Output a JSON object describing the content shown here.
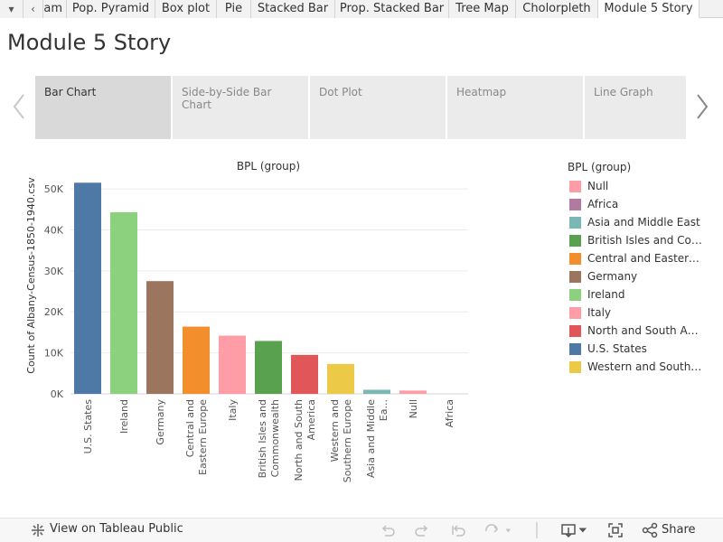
{
  "tabs": [
    {
      "label": "▾",
      "active": false
    },
    {
      "label": "‹",
      "active": false
    },
    {
      "label": "am",
      "active": false
    },
    {
      "label": "Pop. Pyramid",
      "active": false
    },
    {
      "label": "Box plot",
      "active": false
    },
    {
      "label": "Pie",
      "active": false
    },
    {
      "label": "Stacked Bar",
      "active": false
    },
    {
      "label": "Prop. Stacked Bar",
      "active": false
    },
    {
      "label": "Tree Map",
      "active": false
    },
    {
      "label": "Cholorpleth",
      "active": false
    },
    {
      "label": "Module 5 Story",
      "active": true
    }
  ],
  "story": {
    "title": "Module 5 Story",
    "points": [
      "Bar Chart",
      "Side-by-Side Bar Chart",
      "Dot Plot",
      "Heatmap",
      "Line Graph"
    ],
    "active_point": 0
  },
  "icons": {
    "nav_prev": "chevron-left-icon",
    "nav_next": "chevron-right-icon",
    "public": "tableau-public-icon",
    "undo": "undo-icon",
    "redo": "redo-icon",
    "revert": "revert-icon",
    "refresh": "refresh-icon",
    "download": "download-icon",
    "fullscreen": "fullscreen-icon",
    "share": "share-icon"
  },
  "chart_data": {
    "type": "bar",
    "title": "BPL (group)",
    "ylabel": "Count of Albany-Census-1850-1940.csv",
    "xlabel": "",
    "categories": [
      "U.S. States",
      "Ireland",
      "Germany",
      "Central and Eastern Europe",
      "Italy",
      "British Isles and Commonwealth",
      "North and South America",
      "Western and Southern Europe",
      "Asia and Middle Ea...",
      "Null",
      "Africa"
    ],
    "values": [
      51500,
      44300,
      27500,
      16400,
      14200,
      12900,
      9500,
      7300,
      1000,
      800,
      0
    ],
    "colors": [
      "#4e79a7",
      "#8cd17d",
      "#9c755f",
      "#f28e2b",
      "#ff9da7",
      "#59a14f",
      "#e15759",
      "#edc948",
      "#79b8b5",
      "#ff9da7",
      "#b07aa1"
    ],
    "yticks": [
      0,
      10000,
      20000,
      30000,
      40000,
      50000
    ],
    "ytick_labels": [
      "0K",
      "10K",
      "20K",
      "30K",
      "40K",
      "50K"
    ],
    "ylim": [
      0,
      52000
    ],
    "grid": true
  },
  "legend": {
    "title": "BPL (group)",
    "items": [
      {
        "label": "Null",
        "color": "#ff9da7"
      },
      {
        "label": "Africa",
        "color": "#b07aa1"
      },
      {
        "label": "Asia and Middle East",
        "color": "#79b8b5"
      },
      {
        "label": "British Isles and Com...",
        "color": "#59a14f"
      },
      {
        "label": "Central and Eastern ...",
        "color": "#f28e2b"
      },
      {
        "label": "Germany",
        "color": "#9c755f"
      },
      {
        "label": "Ireland",
        "color": "#8cd17d"
      },
      {
        "label": "Italy",
        "color": "#ff9da7"
      },
      {
        "label": "North and South Am...",
        "color": "#e15759"
      },
      {
        "label": "U.S. States",
        "color": "#4e79a7"
      },
      {
        "label": "Western and Southe...",
        "color": "#edc948"
      }
    ]
  },
  "toolbar": {
    "view_public": "View on Tableau Public",
    "share": "Share"
  }
}
